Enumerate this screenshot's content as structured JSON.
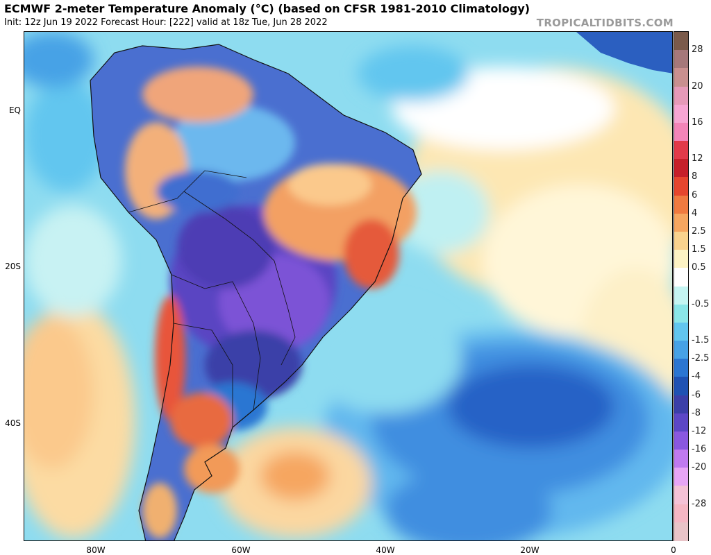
{
  "header": {
    "title": "ECMWF 2-meter Temperature Anomaly (°C) (based on CFSR 1981-2010 Climatology)",
    "subtitle": "Init: 12z Jun 19 2022   Forecast Hour: [222]   valid at 18z Tue, Jun 28 2022",
    "watermark": "TROPICALTIDBITS.COM"
  },
  "map": {
    "lat_labels": [
      "EQ",
      "20S",
      "40S"
    ],
    "lon_labels": [
      "80W",
      "60W",
      "40W",
      "20W",
      "0"
    ]
  },
  "legend": {
    "labels": [
      "28",
      "20",
      "16",
      "12",
      "8",
      "6",
      "4",
      "2.5",
      "1.5",
      "0.5",
      "-0.5",
      "-1.5",
      "-2.5",
      "-4",
      "-6",
      "-8",
      "-12",
      "-16",
      "-20",
      "-28"
    ],
    "colors": [
      "#7a5a4a",
      "#a5787a",
      "#c9908f",
      "#e69ab8",
      "#f7a6d3",
      "#f385b8",
      "#e23a4a",
      "#c6202a",
      "#e6462e",
      "#f07a40",
      "#f6a660",
      "#fad38e",
      "#fdf3c4",
      "#ffffff",
      "#c5f5f2",
      "#8be6e8",
      "#62c6ef",
      "#47a2e6",
      "#2b76d2",
      "#1f52b3",
      "#3b3fa8",
      "#5c47c6",
      "#8a58e0",
      "#c07af0",
      "#e7a5f5",
      "#f4c2d6",
      "#f5b7c4",
      "#e9c4c8"
    ]
  }
}
